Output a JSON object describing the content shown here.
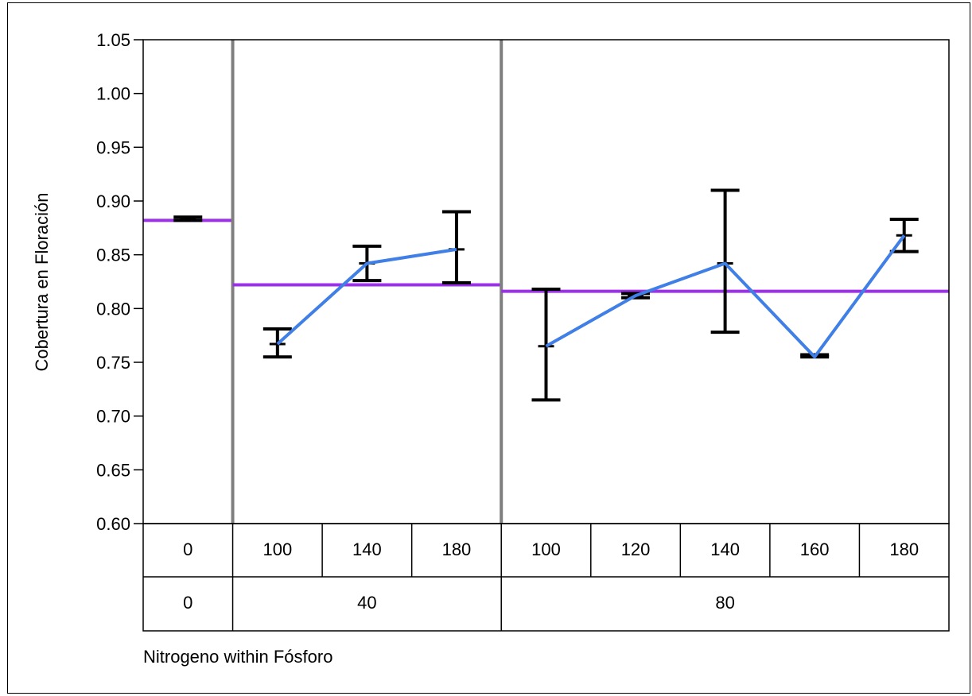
{
  "chart_data": {
    "type": "variability",
    "ylabel": "Cobertura en Floración",
    "xlabel": "Nitrogeno within Fósforo",
    "ylim": [
      0.6,
      1.05
    ],
    "yticks": [
      "0.60",
      "0.65",
      "0.70",
      "0.75",
      "0.80",
      "0.85",
      "0.90",
      "0.95",
      "1.00",
      "1.05"
    ],
    "groups": [
      {
        "label": "0",
        "mean": 0.882,
        "cells": [
          {
            "label": "0",
            "mean": 0.883,
            "high": 0.885,
            "low": 0.882
          }
        ]
      },
      {
        "label": "40",
        "mean": 0.822,
        "cells": [
          {
            "label": "100",
            "mean": 0.767,
            "high": 0.781,
            "low": 0.755
          },
          {
            "label": "140",
            "mean": 0.842,
            "high": 0.858,
            "low": 0.826
          },
          {
            "label": "180",
            "mean": 0.855,
            "high": 0.89,
            "low": 0.824
          }
        ]
      },
      {
        "label": "80",
        "mean": 0.816,
        "cells": [
          {
            "label": "100",
            "mean": 0.765,
            "high": 0.818,
            "low": 0.715
          },
          {
            "label": "120",
            "mean": 0.812,
            "high": 0.814,
            "low": 0.81
          },
          {
            "label": "140",
            "mean": 0.842,
            "high": 0.91,
            "low": 0.778
          },
          {
            "label": "160",
            "mean": 0.755,
            "high": 0.757,
            "low": 0.755
          },
          {
            "label": "180",
            "mean": 0.868,
            "high": 0.883,
            "low": 0.853
          }
        ]
      }
    ],
    "colors": {
      "group_mean": "#9b30e8",
      "cell_mean_line": "#3f7fe6",
      "separator": "#7f7f7f",
      "error_bar": "#000000"
    }
  }
}
